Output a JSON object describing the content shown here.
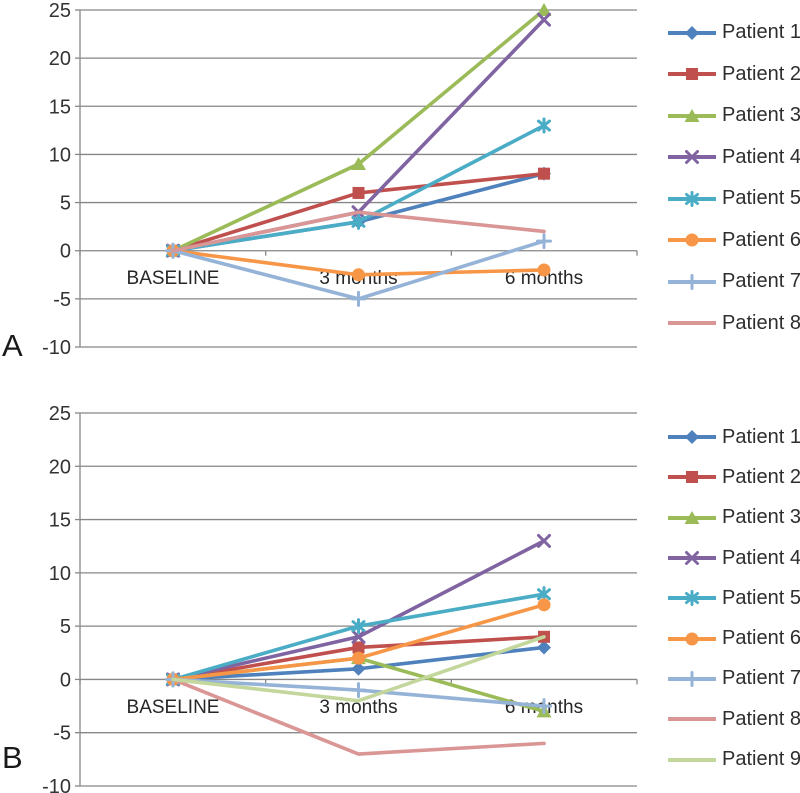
{
  "page": {
    "background": "#FFFFFF"
  },
  "style": {
    "grid_color": "#878787",
    "axis_color": "#878787",
    "tick_text_color": "#333333",
    "category_text_color": "#262626",
    "panel_letter_color": "#1A1A1A"
  },
  "chart_data": [
    {
      "type": "line",
      "panel_label": "A",
      "categories": [
        "BASELINE",
        "3 months",
        "6 months"
      ],
      "ylim": [
        -10,
        25
      ],
      "ytick_step": 5,
      "ytick_labels": [
        "25",
        "20",
        "15",
        "10",
        "5",
        "0",
        "-5",
        "-10"
      ],
      "grid": true,
      "legend_position": "right",
      "series": [
        {
          "name": "Patient 1",
          "color": "#4F81BD",
          "marker": "diamond",
          "values": [
            0,
            3,
            8
          ]
        },
        {
          "name": "Patient 2",
          "color": "#C0504D",
          "marker": "square",
          "values": [
            0,
            6,
            8
          ]
        },
        {
          "name": "Patient 3",
          "color": "#9BBB59",
          "marker": "triangle",
          "values": [
            0,
            9,
            25
          ]
        },
        {
          "name": "Patient 4",
          "color": "#8064A2",
          "marker": "x",
          "values": [
            0,
            4,
            24
          ]
        },
        {
          "name": "Patient 5",
          "color": "#4BACC6",
          "marker": "asterisk",
          "values": [
            0,
            3,
            13
          ]
        },
        {
          "name": "Patient 6",
          "color": "#F79646",
          "marker": "circle",
          "values": [
            0,
            -2.5,
            -2
          ]
        },
        {
          "name": "Patient 7",
          "color": "#95B3D7",
          "marker": "plus",
          "values": [
            0,
            -5,
            1
          ]
        },
        {
          "name": "Patient 8",
          "color": "#D99694",
          "marker": "none",
          "values": [
            0,
            4,
            2
          ]
        }
      ]
    },
    {
      "type": "line",
      "panel_label": "B",
      "categories": [
        "BASELINE",
        "3 months",
        "6 months"
      ],
      "ylim": [
        -10,
        25
      ],
      "ytick_step": 5,
      "ytick_labels": [
        "25",
        "20",
        "15",
        "10",
        "5",
        "0",
        "-5",
        "-10"
      ],
      "grid": true,
      "legend_position": "right",
      "series": [
        {
          "name": "Patient 1",
          "color": "#4F81BD",
          "marker": "diamond",
          "values": [
            0,
            1,
            3
          ]
        },
        {
          "name": "Patient 2",
          "color": "#C0504D",
          "marker": "square",
          "values": [
            0,
            3,
            4
          ]
        },
        {
          "name": "Patient 3",
          "color": "#9BBB59",
          "marker": "triangle",
          "values": [
            0,
            2,
            -3
          ]
        },
        {
          "name": "Patient 4",
          "color": "#8064A2",
          "marker": "x",
          "values": [
            0,
            4,
            13
          ]
        },
        {
          "name": "Patient 5",
          "color": "#4BACC6",
          "marker": "asterisk",
          "values": [
            0,
            5,
            8
          ]
        },
        {
          "name": "Patient 6",
          "color": "#F79646",
          "marker": "circle",
          "values": [
            0,
            2,
            7
          ]
        },
        {
          "name": "Patient 7",
          "color": "#95B3D7",
          "marker": "plus",
          "values": [
            0,
            -1,
            -2.5
          ]
        },
        {
          "name": "Patient 8",
          "color": "#D99694",
          "marker": "none",
          "values": [
            0,
            -7,
            -6
          ]
        },
        {
          "name": "Patient 9",
          "color": "#C3D69B",
          "marker": "none",
          "values": [
            0,
            -2,
            4
          ]
        }
      ]
    }
  ]
}
